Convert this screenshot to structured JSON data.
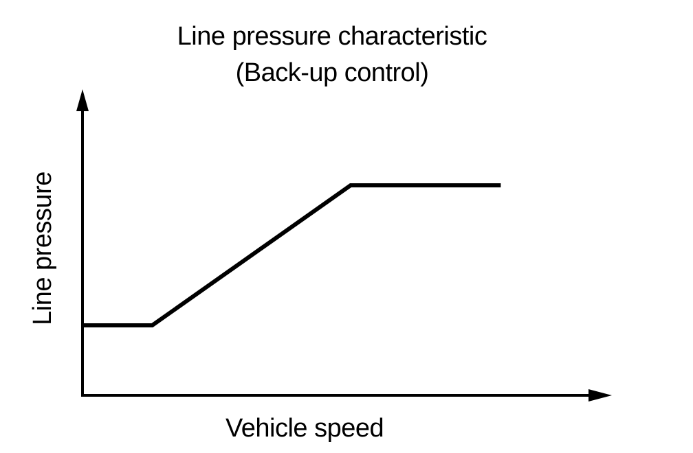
{
  "chart_data": {
    "type": "line",
    "title": "Line pressure characteristic",
    "subtitle": "(Back-up control)",
    "xlabel": "Vehicle speed",
    "ylabel": "Line pressure",
    "grid": false,
    "legend": "none",
    "xlim": [
      0,
      10
    ],
    "ylim": [
      0,
      10
    ],
    "series": [
      {
        "color": "#000000",
        "x": [
          0,
          1.3,
          5,
          7.8
        ],
        "y": [
          2.5,
          2.5,
          7.5,
          7.5
        ]
      }
    ]
  }
}
